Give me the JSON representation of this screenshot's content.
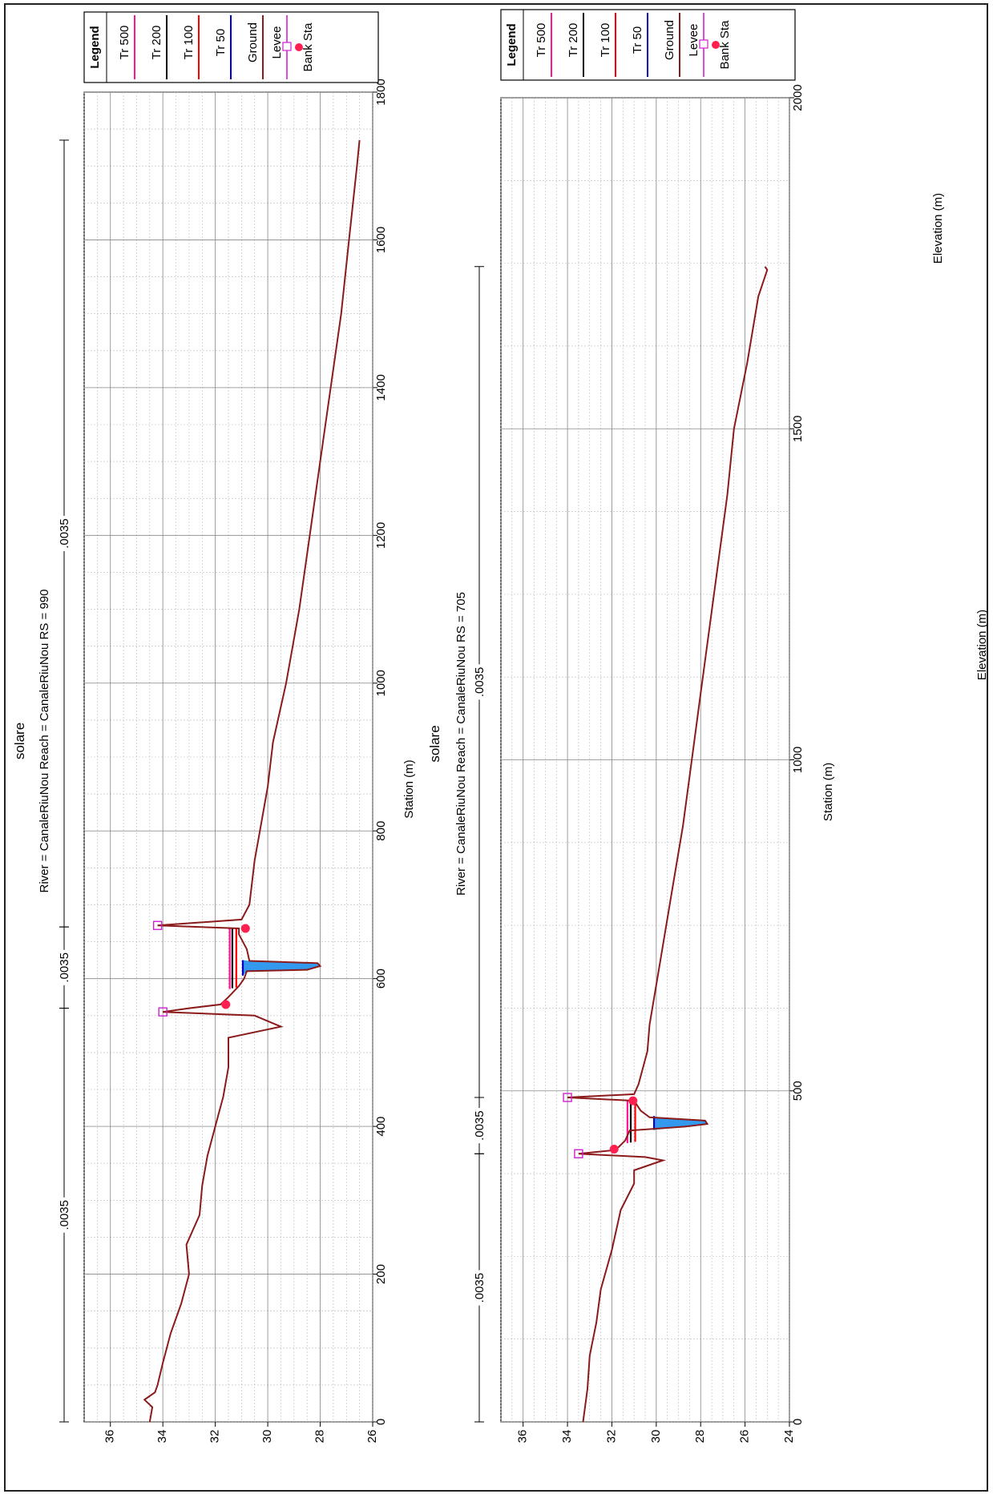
{
  "colors": {
    "tr500": "#ff1493",
    "tr200": "#000000",
    "tr100": "#ff0000",
    "tr50": "#0000cc",
    "ground": "#8b1a1a",
    "levee": "#d020d0",
    "bank": "#ff2050",
    "water": "#3399ee",
    "grid": "#999999"
  },
  "chart_data": [
    {
      "type": "line",
      "title": "solare",
      "subtitle": "River = CanaleRiuNou    Reach = CanaleRiuNou    RS = 990",
      "xlabel": "Station (m)",
      "ylabel": "Elevation (m)",
      "xlim": [
        0,
        1800
      ],
      "ylim": [
        26,
        37
      ],
      "xticks": [
        "0",
        "200",
        "400",
        "600",
        "800",
        "1000",
        "1200",
        "1400",
        "1600",
        "1800"
      ],
      "yticks": [
        "26",
        "28",
        "30",
        "32",
        "34",
        "36"
      ],
      "grid": true,
      "legend": {
        "position": "top-right",
        "title": "Legend",
        "entries": [
          "Tr 500",
          "Tr 200",
          "Tr 100",
          "Tr 50",
          "Ground",
          "Levee",
          "Bank Sta"
        ]
      },
      "manning": [
        {
          "label": ".0035",
          "x_start": 0,
          "x_end": 560
        },
        {
          "label": ".0035",
          "x_start": 560,
          "x_end": 670
        },
        {
          "label": ".0035",
          "x_start": 670,
          "x_end": 1735
        }
      ],
      "ground": [
        [
          0,
          34.5
        ],
        [
          20,
          34.4
        ],
        [
          30,
          34.7
        ],
        [
          40,
          34.3
        ],
        [
          50,
          34.2
        ],
        [
          80,
          34.0
        ],
        [
          120,
          33.7
        ],
        [
          160,
          33.3
        ],
        [
          200,
          33.0
        ],
        [
          240,
          33.1
        ],
        [
          280,
          32.6
        ],
        [
          320,
          32.5
        ],
        [
          360,
          32.3
        ],
        [
          400,
          32.0
        ],
        [
          440,
          31.7
        ],
        [
          480,
          31.5
        ],
        [
          520,
          31.5
        ],
        [
          535,
          29.5
        ],
        [
          550,
          30.5
        ],
        [
          555,
          34.0
        ],
        [
          560,
          33.0
        ],
        [
          565,
          31.8
        ],
        [
          575,
          31.5
        ],
        [
          590,
          31.1
        ],
        [
          600,
          30.9
        ],
        [
          610,
          30.8
        ],
        [
          612,
          28.5
        ],
        [
          617,
          28.0
        ],
        [
          621,
          28.1
        ],
        [
          624,
          30.7
        ],
        [
          640,
          30.8
        ],
        [
          660,
          31.1
        ],
        [
          668,
          31.1
        ],
        [
          672,
          34.2
        ],
        [
          680,
          31.0
        ],
        [
          700,
          30.7
        ],
        [
          760,
          30.5
        ],
        [
          800,
          30.3
        ],
        [
          860,
          30.0
        ],
        [
          920,
          29.8
        ],
        [
          1000,
          29.3
        ],
        [
          1100,
          28.8
        ],
        [
          1200,
          28.4
        ],
        [
          1300,
          28.0
        ],
        [
          1400,
          27.6
        ],
        [
          1500,
          27.2
        ],
        [
          1600,
          26.9
        ],
        [
          1700,
          26.6
        ],
        [
          1735,
          26.5
        ]
      ],
      "water_surfaces": [
        {
          "name": "Tr 500",
          "x": [
            586,
            668
          ],
          "y": 31.45
        },
        {
          "name": "Tr 200",
          "x": [
            587,
            668
          ],
          "y": 31.35
        },
        {
          "name": "Tr 100",
          "x": [
            588,
            668
          ],
          "y": 31.2
        },
        {
          "name": "Tr 50",
          "x": [
            604,
            625
          ],
          "y": 30.95
        }
      ],
      "levees": [
        [
          555,
          34.0
        ],
        [
          672,
          34.2
        ]
      ],
      "bank_stations": [
        [
          565,
          31.6
        ],
        [
          668,
          30.85
        ]
      ]
    },
    {
      "type": "line",
      "title": "solare",
      "subtitle": "River = CanaleRiuNou    Reach = CanaleRiuNou    RS = 705",
      "xlabel": "Station (m)",
      "ylabel": "Elevation (m)",
      "xlim": [
        0,
        2000
      ],
      "ylim": [
        24,
        37
      ],
      "xticks": [
        "0",
        "500",
        "1000",
        "1500",
        "2000"
      ],
      "yticks": [
        "24",
        "26",
        "28",
        "30",
        "32",
        "34",
        "36"
      ],
      "grid": true,
      "legend": {
        "position": "top-right",
        "title": "Legend",
        "entries": [
          "Tr 500",
          "Tr 200",
          "Tr 100",
          "Tr 50",
          "Ground",
          "Levee",
          "Bank Sta"
        ]
      },
      "manning": [
        {
          "label": ".0035",
          "x_start": 0,
          "x_end": 405
        },
        {
          "label": ".0035",
          "x_start": 405,
          "x_end": 490
        },
        {
          "label": ".0035",
          "x_start": 490,
          "x_end": 1745
        }
      ],
      "ground": [
        [
          0,
          33.3
        ],
        [
          50,
          33.1
        ],
        [
          100,
          33.0
        ],
        [
          150,
          32.7
        ],
        [
          200,
          32.5
        ],
        [
          260,
          32.0
        ],
        [
          320,
          31.6
        ],
        [
          360,
          31.0
        ],
        [
          380,
          31.0
        ],
        [
          395,
          29.7
        ],
        [
          400,
          30.5
        ],
        [
          405,
          33.5
        ],
        [
          410,
          32.0
        ],
        [
          415,
          31.7
        ],
        [
          425,
          31.4
        ],
        [
          440,
          31.2
        ],
        [
          446,
          28.7
        ],
        [
          450,
          27.7
        ],
        [
          455,
          27.8
        ],
        [
          460,
          30.3
        ],
        [
          470,
          30.7
        ],
        [
          485,
          31.0
        ],
        [
          490,
          34.0
        ],
        [
          495,
          31.0
        ],
        [
          510,
          30.8
        ],
        [
          560,
          30.4
        ],
        [
          600,
          30.3
        ],
        [
          700,
          29.8
        ],
        [
          800,
          29.3
        ],
        [
          900,
          28.8
        ],
        [
          1000,
          28.4
        ],
        [
          1100,
          28.0
        ],
        [
          1200,
          27.6
        ],
        [
          1300,
          27.2
        ],
        [
          1400,
          26.8
        ],
        [
          1500,
          26.5
        ],
        [
          1600,
          25.9
        ],
        [
          1700,
          25.4
        ],
        [
          1740,
          25.0
        ],
        [
          1745,
          25.1
        ]
      ],
      "water_surfaces": [
        {
          "name": "Tr 500",
          "x": [
            421,
            485
          ],
          "y": 31.3
        },
        {
          "name": "Tr 200",
          "x": [
            422,
            485
          ],
          "y": 31.15
        },
        {
          "name": "Tr 100",
          "x": [
            423,
            485
          ],
          "y": 30.95
        },
        {
          "name": "Tr 50",
          "x": [
            441,
            462
          ],
          "y": 30.1
        }
      ],
      "levees": [
        [
          405,
          33.5
        ],
        [
          490,
          34.0
        ]
      ],
      "bank_stations": [
        [
          412,
          31.9
        ],
        [
          485,
          31.05
        ]
      ]
    }
  ]
}
